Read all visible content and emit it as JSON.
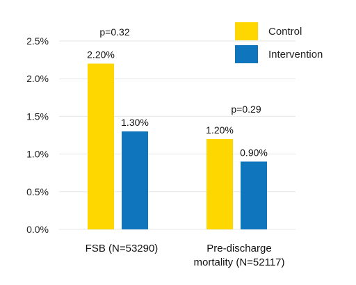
{
  "chart_data": {
    "type": "bar",
    "title": "",
    "xlabel": "",
    "ylabel": "",
    "categories": [
      [
        "FSB (N=53290)"
      ],
      [
        "Pre-discharge",
        "mortality (N=52117)"
      ]
    ],
    "series": [
      {
        "name": "Control",
        "color": "#FFD700",
        "values": [
          2.2,
          1.2
        ],
        "labels": [
          "2.20%",
          "1.20%"
        ]
      },
      {
        "name": "Intervention",
        "color": "#0F75BC",
        "values": [
          1.3,
          0.9
        ],
        "labels": [
          "1.30%",
          "0.90%"
        ]
      }
    ],
    "ylim": [
      0,
      2.5
    ],
    "yticks": [
      0,
      0.5,
      1.0,
      1.5,
      2.0,
      2.5
    ],
    "ytick_labels": [
      "0.0%",
      "0.5%",
      "1.0%",
      "1.5%",
      "2.0%",
      "2.5%"
    ],
    "annotations": [
      "p=0.32",
      "p=0.29"
    ],
    "grid": true,
    "legend_position": "top-right",
    "grid_color": "#E6E6E6"
  }
}
